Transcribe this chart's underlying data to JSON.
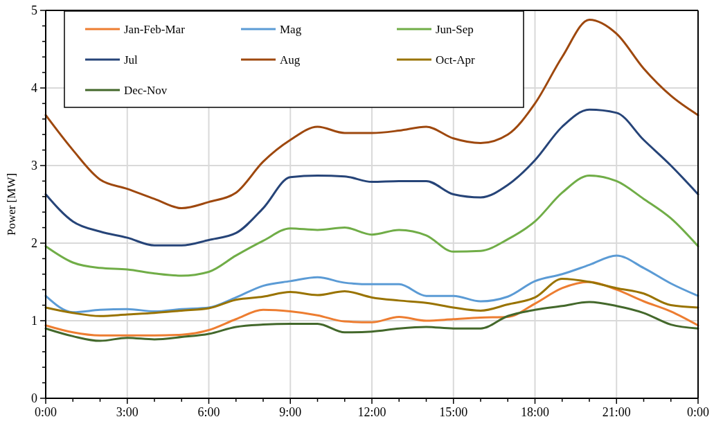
{
  "chart_data": {
    "type": "line",
    "ylabel": "Power [MW]",
    "x": [
      0,
      1,
      2,
      3,
      4,
      5,
      6,
      7,
      8,
      9,
      10,
      11,
      12,
      13,
      14,
      15,
      16,
      17,
      18,
      19,
      20,
      21,
      22,
      23,
      24
    ],
    "xlim": [
      0,
      24
    ],
    "xticks": [
      {
        "value": 0,
        "label": "0:00"
      },
      {
        "value": 1,
        "label": null
      },
      {
        "value": 2,
        "label": null
      },
      {
        "value": 3,
        "label": "3:00"
      },
      {
        "value": 4,
        "label": null
      },
      {
        "value": 5,
        "label": null
      },
      {
        "value": 6,
        "label": "6:00"
      },
      {
        "value": 7,
        "label": null
      },
      {
        "value": 8,
        "label": null
      },
      {
        "value": 9,
        "label": "9:00"
      },
      {
        "value": 10,
        "label": null
      },
      {
        "value": 11,
        "label": null
      },
      {
        "value": 12,
        "label": "12:00"
      },
      {
        "value": 13,
        "label": null
      },
      {
        "value": 14,
        "label": null
      },
      {
        "value": 15,
        "label": "15:00"
      },
      {
        "value": 16,
        "label": null
      },
      {
        "value": 17,
        "label": null
      },
      {
        "value": 18,
        "label": "18:00"
      },
      {
        "value": 19,
        "label": null
      },
      {
        "value": 20,
        "label": null
      },
      {
        "value": 21,
        "label": "21:00"
      },
      {
        "value": 22,
        "label": null
      },
      {
        "value": 23,
        "label": null
      },
      {
        "value": 24,
        "label": "0:00"
      }
    ],
    "ylim": [
      0,
      5
    ],
    "yticks": [
      0,
      {
        "value": 0.2,
        "label": null
      },
      {
        "value": 0.4,
        "label": null
      },
      {
        "value": 0.6,
        "label": null
      },
      {
        "value": 0.8,
        "label": null
      },
      1,
      {
        "value": 1.2,
        "label": null
      },
      {
        "value": 1.4,
        "label": null
      },
      {
        "value": 1.6,
        "label": null
      },
      {
        "value": 1.8,
        "label": null
      },
      2,
      {
        "value": 2.2,
        "label": null
      },
      {
        "value": 2.4,
        "label": null
      },
      {
        "value": 2.6,
        "label": null
      },
      {
        "value": 2.8,
        "label": null
      },
      3,
      {
        "value": 3.2,
        "label": null
      },
      {
        "value": 3.4,
        "label": null
      },
      {
        "value": 3.6,
        "label": null
      },
      {
        "value": 3.8,
        "label": null
      },
      4,
      {
        "value": 4.2,
        "label": null
      },
      {
        "value": 4.4,
        "label": null
      },
      {
        "value": 4.6,
        "label": null
      },
      {
        "value": 4.8,
        "label": null
      },
      5
    ],
    "grid": true,
    "legend": "top left",
    "marker": "none",
    "line_style": "solid",
    "series": [
      {
        "name": "Jan-Feb-Mar",
        "color": "#ed7d31",
        "values": [
          0.94,
          0.85,
          0.81,
          0.81,
          0.81,
          0.82,
          0.88,
          1.02,
          1.14,
          1.12,
          1.07,
          0.99,
          0.98,
          1.05,
          1.0,
          1.02,
          1.04,
          1.05,
          1.22,
          1.42,
          1.5,
          1.4,
          1.25,
          1.12,
          0.94
        ]
      },
      {
        "name": "Mag",
        "color": "#5b9bd5",
        "values": [
          1.32,
          1.11,
          1.14,
          1.15,
          1.12,
          1.15,
          1.17,
          1.3,
          1.45,
          1.51,
          1.56,
          1.49,
          1.47,
          1.47,
          1.32,
          1.32,
          1.25,
          1.31,
          1.51,
          1.6,
          1.72,
          1.84,
          1.68,
          1.48,
          1.32
        ]
      },
      {
        "name": "Jun-Sep",
        "color": "#70ad47",
        "values": [
          1.96,
          1.75,
          1.68,
          1.66,
          1.61,
          1.58,
          1.63,
          1.84,
          2.03,
          2.19,
          2.17,
          2.2,
          2.11,
          2.17,
          2.1,
          1.89,
          1.9,
          2.05,
          2.28,
          2.65,
          2.87,
          2.8,
          2.57,
          2.32,
          1.96
        ]
      },
      {
        "name": "Jul",
        "color": "#264478",
        "values": [
          2.63,
          2.28,
          2.15,
          2.07,
          1.97,
          1.97,
          2.04,
          2.13,
          2.45,
          2.85,
          2.87,
          2.86,
          2.79,
          2.8,
          2.8,
          2.63,
          2.59,
          2.75,
          3.07,
          3.5,
          3.72,
          3.68,
          3.33,
          3.0,
          2.63
        ]
      },
      {
        "name": "Aug",
        "color": "#9e480e",
        "values": [
          3.65,
          3.2,
          2.82,
          2.7,
          2.57,
          2.45,
          2.53,
          2.65,
          3.05,
          3.33,
          3.5,
          3.42,
          3.42,
          3.45,
          3.5,
          3.35,
          3.29,
          3.4,
          3.8,
          4.4,
          4.88,
          4.7,
          4.25,
          3.9,
          3.65
        ]
      },
      {
        "name": "Oct-Apr",
        "color": "#997300",
        "values": [
          1.17,
          1.1,
          1.06,
          1.08,
          1.1,
          1.13,
          1.16,
          1.27,
          1.31,
          1.37,
          1.33,
          1.38,
          1.3,
          1.26,
          1.23,
          1.17,
          1.13,
          1.21,
          1.3,
          1.54,
          1.5,
          1.42,
          1.35,
          1.2,
          1.17
        ]
      },
      {
        "name": "Dec-Nov",
        "color": "#43682b",
        "values": [
          0.9,
          0.8,
          0.74,
          0.78,
          0.76,
          0.79,
          0.83,
          0.92,
          0.95,
          0.96,
          0.96,
          0.85,
          0.86,
          0.9,
          0.92,
          0.9,
          0.9,
          1.06,
          1.14,
          1.19,
          1.24,
          1.19,
          1.1,
          0.95,
          0.9
        ]
      }
    ]
  }
}
